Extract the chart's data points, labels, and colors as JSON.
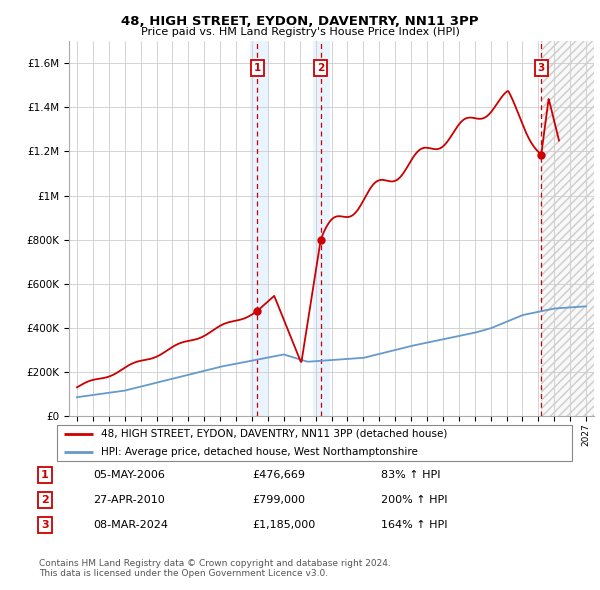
{
  "title1": "48, HIGH STREET, EYDON, DAVENTRY, NN11 3PP",
  "title2": "Price paid vs. HM Land Registry's House Price Index (HPI)",
  "legend_line1": "48, HIGH STREET, EYDON, DAVENTRY, NN11 3PP (detached house)",
  "legend_line2": "HPI: Average price, detached house, West Northamptonshire",
  "footnote1": "Contains HM Land Registry data © Crown copyright and database right 2024.",
  "footnote2": "This data is licensed under the Open Government Licence v3.0.",
  "transactions": [
    {
      "num": 1,
      "date": "05-MAY-2006",
      "price": 476669,
      "price_str": "£476,669",
      "pct": "83% ↑ HPI",
      "x_year": 2006.34
    },
    {
      "num": 2,
      "date": "27-APR-2010",
      "price": 799000,
      "price_str": "£799,000",
      "pct": "200% ↑ HPI",
      "x_year": 2010.32
    },
    {
      "num": 3,
      "date": "08-MAR-2024",
      "price": 1185000,
      "price_str": "£1,185,000",
      "pct": "164% ↑ HPI",
      "x_year": 2024.18
    }
  ],
  "hpi_color": "#6699cc",
  "price_color": "#cc0000",
  "vline_color": "#cc0000",
  "marker_box_color": "#cc0000",
  "ylim": [
    0,
    1700000
  ],
  "yticks": [
    0,
    200000,
    400000,
    600000,
    800000,
    1000000,
    1200000,
    1400000,
    1600000
  ],
  "xlim_start": 1994.5,
  "xlim_end": 2027.5,
  "xticks": [
    1995,
    1996,
    1997,
    1998,
    1999,
    2000,
    2001,
    2002,
    2003,
    2004,
    2005,
    2006,
    2007,
    2008,
    2009,
    2010,
    2011,
    2012,
    2013,
    2014,
    2015,
    2016,
    2017,
    2018,
    2019,
    2020,
    2021,
    2022,
    2023,
    2024,
    2025,
    2026,
    2027
  ]
}
